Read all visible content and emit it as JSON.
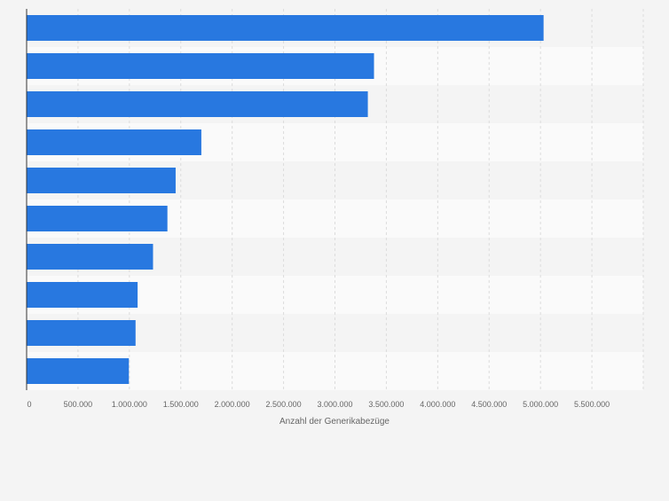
{
  "chart_data": {
    "type": "bar",
    "orientation": "horizontal",
    "categories": [
      "",
      "",
      "",
      "",
      "",
      "",
      "",
      "",
      "",
      ""
    ],
    "values": [
      5030000,
      3380000,
      3320000,
      1700000,
      1450000,
      1370000,
      1230000,
      1080000,
      1060000,
      995000
    ],
    "xlabel": "Anzahl der Generikabezüge",
    "ylabel": "",
    "xlim": [
      0,
      6000000
    ],
    "x_ticks": [
      {
        "value": 0,
        "label": "0"
      },
      {
        "value": 500000,
        "label": "500.000"
      },
      {
        "value": 1000000,
        "label": "1.000.000"
      },
      {
        "value": 1500000,
        "label": "1.500.000"
      },
      {
        "value": 2000000,
        "label": "2.000.000"
      },
      {
        "value": 2500000,
        "label": "2.500.000"
      },
      {
        "value": 3000000,
        "label": "3.000.000"
      },
      {
        "value": 3500000,
        "label": "3.500.000"
      },
      {
        "value": 4000000,
        "label": "4.000.000"
      },
      {
        "value": 4500000,
        "label": "4.500.000"
      },
      {
        "value": 5000000,
        "label": "5.000.000"
      },
      {
        "value": 5500000,
        "label": "5.500.000"
      }
    ],
    "grid": true,
    "bar_color": "#2878e0"
  }
}
